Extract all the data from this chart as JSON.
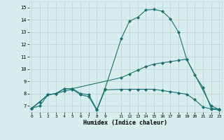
{
  "line1_x": [
    0,
    1,
    2,
    3,
    4,
    5,
    6,
    7,
    8,
    9,
    11,
    12,
    13,
    14,
    15,
    16,
    17,
    18,
    19,
    20,
    21,
    22,
    23
  ],
  "line1_y": [
    6.8,
    7.3,
    7.9,
    8.0,
    8.4,
    8.4,
    8.0,
    7.9,
    6.7,
    8.4,
    12.5,
    13.9,
    14.2,
    14.8,
    14.85,
    14.7,
    14.1,
    13.0,
    10.8,
    9.5,
    8.5,
    6.8,
    6.7
  ],
  "line2_x": [
    0,
    2,
    3,
    4,
    5,
    11,
    12,
    13,
    14,
    15,
    16,
    17,
    18,
    19,
    22,
    23
  ],
  "line2_y": [
    6.8,
    7.9,
    8.0,
    8.4,
    8.4,
    9.3,
    9.6,
    9.9,
    10.2,
    10.4,
    10.5,
    10.6,
    10.7,
    10.8,
    7.0,
    6.7
  ],
  "line3_x": [
    0,
    1,
    2,
    3,
    4,
    5,
    6,
    7,
    8,
    9,
    11,
    12,
    13,
    14,
    15,
    16,
    17,
    18,
    19,
    20,
    21,
    22,
    23
  ],
  "line3_y": [
    6.8,
    7.0,
    7.9,
    8.0,
    8.2,
    8.35,
    7.9,
    7.75,
    6.65,
    8.3,
    8.35,
    8.35,
    8.35,
    8.35,
    8.35,
    8.25,
    8.15,
    8.05,
    7.95,
    7.5,
    6.9,
    6.75,
    6.65
  ],
  "line_color": "#1a7070",
  "marker": "D",
  "markersize": 2,
  "linewidth": 0.8,
  "bg_color": "#d8eeee",
  "grid_color": "#c0d4d4",
  "xlabel": "Humidex (Indice chaleur)",
  "yticks": [
    7,
    8,
    9,
    10,
    11,
    12,
    13,
    14,
    15
  ],
  "xticks": [
    0,
    1,
    2,
    3,
    4,
    5,
    6,
    7,
    8,
    9,
    11,
    12,
    13,
    14,
    15,
    16,
    17,
    18,
    19,
    20,
    21,
    22,
    23
  ],
  "xlim": [
    -0.3,
    23.3
  ],
  "ylim": [
    6.5,
    15.5
  ]
}
